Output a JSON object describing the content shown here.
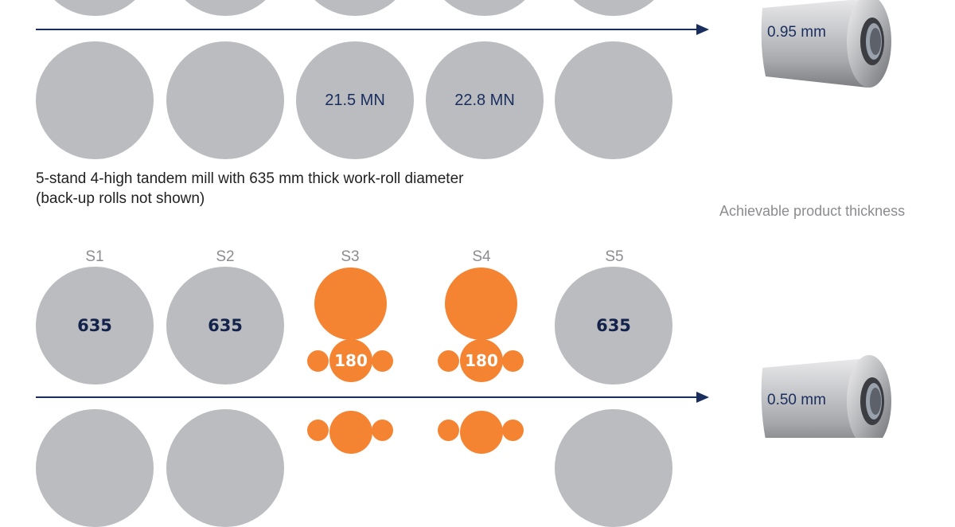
{
  "top_mill": {
    "force_labels": [
      "",
      "",
      "21.5 MN",
      "22.8 MN",
      ""
    ],
    "product_thickness": "0.95 mm"
  },
  "caption": {
    "line1": "5-stand 4-high tandem mill with 635 mm thick work-roll diameter",
    "line2": "(back-up rolls not shown)"
  },
  "product_thickness_title": "Achievable product thickness",
  "bottom_mill": {
    "stands": [
      "S1",
      "S2",
      "S3",
      "S4",
      "S5"
    ],
    "work_roll_diameters": [
      "635",
      "635",
      "180",
      "180",
      "635"
    ],
    "product_thickness": "0.50 mm"
  },
  "colors": {
    "standard_roll": "#bbbcc0",
    "small_roll": "#f58432",
    "arrow": "#1a2e5e"
  }
}
